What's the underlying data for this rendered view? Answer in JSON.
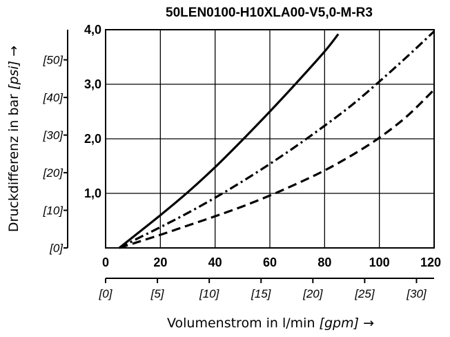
{
  "chart_data": {
    "type": "line",
    "title": "50LEN0100-H10XLA00-V5,0-M-R3",
    "xlabel": "Volumenstrom in l/min",
    "xlabel_unit": "[gpm]",
    "xlabel_arrow": "→",
    "ylabel": "Druckdifferenz in bar",
    "ylabel_unit": "[psi]",
    "ylabel_arrow": "→",
    "xlim": [
      0,
      120
    ],
    "ylim": [
      0,
      4
    ],
    "grid": true,
    "x_ticks": [
      {
        "value": 0,
        "label": "0"
      },
      {
        "value": 20,
        "label": "20"
      },
      {
        "value": 40,
        "label": "40"
      },
      {
        "value": 60,
        "label": "60"
      },
      {
        "value": 80,
        "label": "80"
      },
      {
        "value": 100,
        "label": "100"
      },
      {
        "value": 120,
        "label": "120"
      }
    ],
    "y_ticks": [
      {
        "value": 1,
        "label": "1,0"
      },
      {
        "value": 2,
        "label": "2,0"
      },
      {
        "value": 3,
        "label": "3,0"
      },
      {
        "value": 4,
        "label": "4,0"
      }
    ],
    "secondary_x_ticks": [
      {
        "value": 0,
        "label": "[0]"
      },
      {
        "value": 5,
        "label": "[5]"
      },
      {
        "value": 10,
        "label": "[10]"
      },
      {
        "value": 15,
        "label": "[15]"
      },
      {
        "value": 20,
        "label": "[20]"
      },
      {
        "value": 25,
        "label": "[25]"
      },
      {
        "value": 30,
        "label": "[30]"
      }
    ],
    "secondary_y_ticks": [
      {
        "value": 0,
        "label": "[0]"
      },
      {
        "value": 10,
        "label": "[10]"
      },
      {
        "value": 20,
        "label": "[20]"
      },
      {
        "value": 30,
        "label": "[30]"
      },
      {
        "value": 40,
        "label": "[40]"
      },
      {
        "value": 50,
        "label": "[50]"
      }
    ],
    "series": [
      {
        "style": "solid",
        "x": [
          5,
          10,
          20,
          30,
          40,
          50,
          60,
          70,
          80,
          85
        ],
        "y": [
          0.0,
          0.2,
          0.6,
          1.02,
          1.48,
          1.98,
          2.5,
          3.04,
          3.6,
          3.92
        ]
      },
      {
        "style": "dashdot",
        "x": [
          5,
          10,
          20,
          30,
          40,
          50,
          60,
          70,
          80,
          90,
          100,
          110,
          120
        ],
        "y": [
          0.0,
          0.13,
          0.38,
          0.64,
          0.92,
          1.22,
          1.54,
          1.88,
          2.24,
          2.62,
          3.05,
          3.5,
          3.97
        ]
      },
      {
        "style": "dashed",
        "x": [
          5,
          10,
          20,
          30,
          40,
          50,
          60,
          70,
          80,
          90,
          100,
          110,
          120
        ],
        "y": [
          0.0,
          0.08,
          0.24,
          0.41,
          0.58,
          0.76,
          0.96,
          1.18,
          1.42,
          1.7,
          2.02,
          2.41,
          2.9
        ]
      }
    ]
  }
}
